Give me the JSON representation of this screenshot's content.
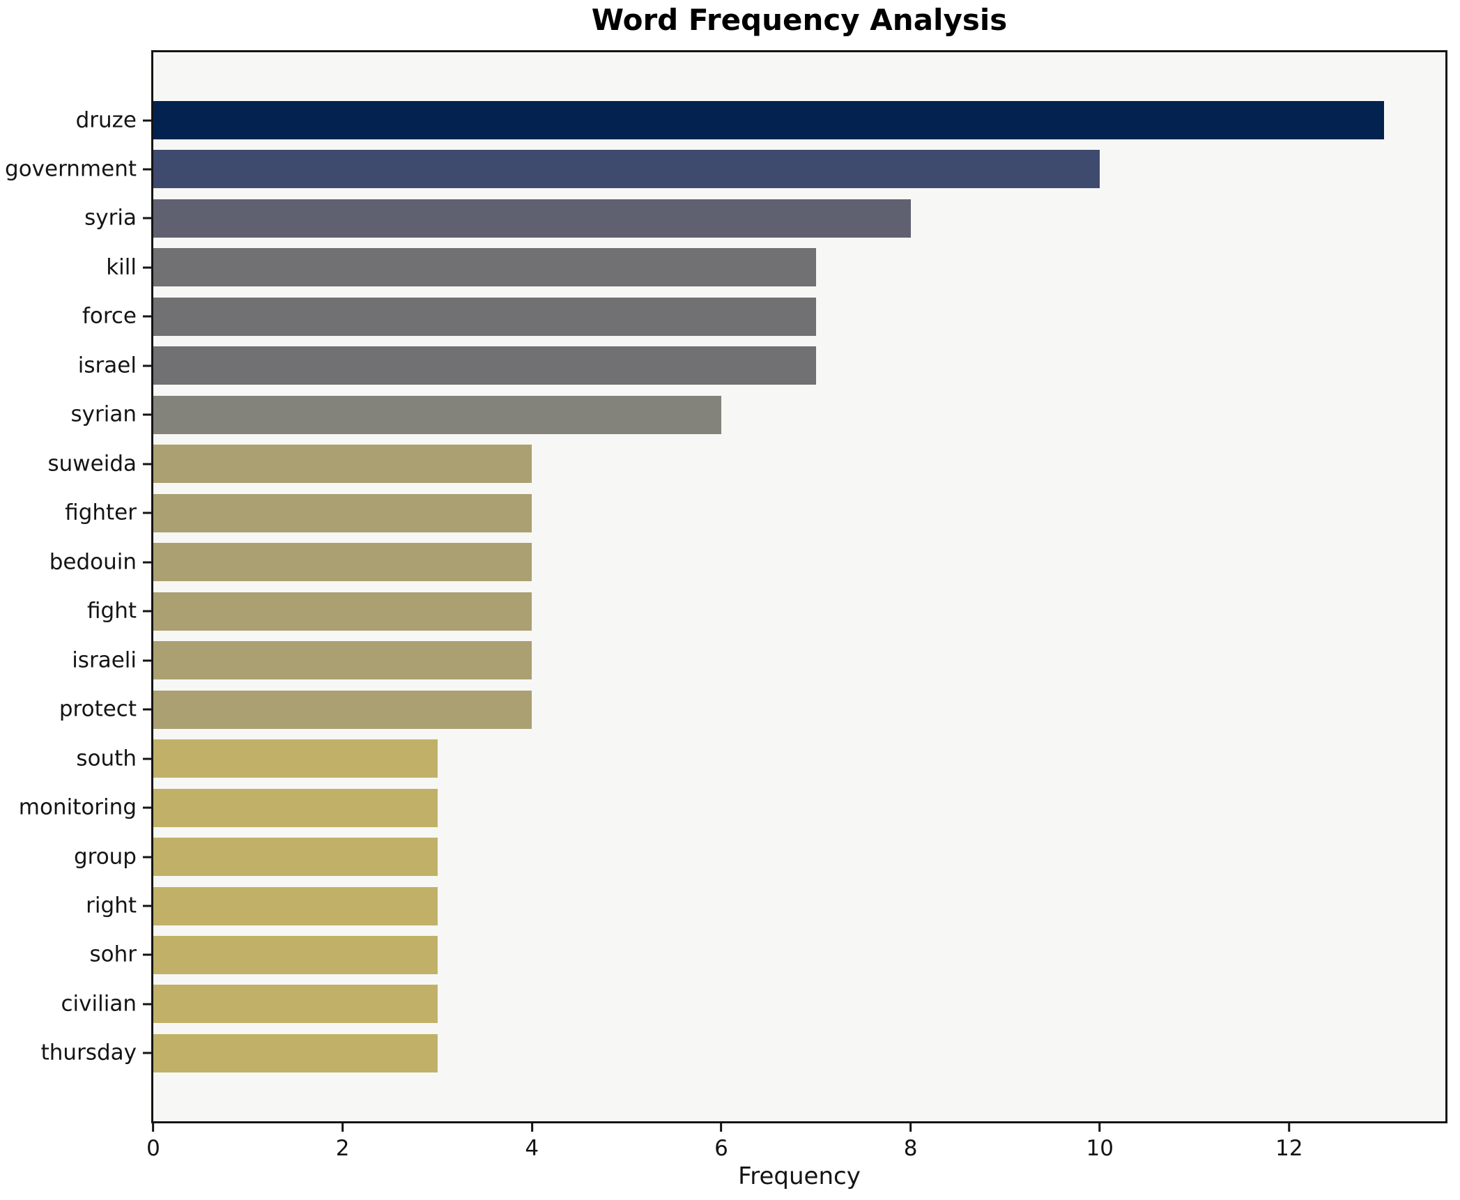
{
  "chart_data": {
    "type": "bar",
    "orientation": "horizontal",
    "title": "Word Frequency Analysis",
    "xlabel": "Frequency",
    "ylabel": "",
    "categories": [
      "druze",
      "government",
      "syria",
      "kill",
      "force",
      "israel",
      "syrian",
      "suweida",
      "fighter",
      "bedouin",
      "fight",
      "israeli",
      "protect",
      "south",
      "monitoring",
      "group",
      "right",
      "sohr",
      "civilian",
      "thursday"
    ],
    "values": [
      13,
      10,
      8,
      7,
      7,
      7,
      6,
      4,
      4,
      4,
      4,
      4,
      4,
      3,
      3,
      3,
      3,
      3,
      3,
      3
    ],
    "bar_colors": [
      "#04224f",
      "#3e4a6e",
      "#5f6170",
      "#717174",
      "#717174",
      "#717174",
      "#84837b",
      "#aba072",
      "#aba072",
      "#aba072",
      "#aba072",
      "#aba072",
      "#aba072",
      "#c1b168",
      "#c1b168",
      "#c1b168",
      "#c1b168",
      "#c1b168",
      "#c1b168",
      "#c1b168"
    ],
    "xlim": [
      0,
      13.65
    ],
    "xticks": [
      0,
      2,
      4,
      6,
      8,
      10,
      12
    ],
    "grid": false,
    "legend": null,
    "plot_bg": "#f7f7f5",
    "fig_bg": "#ffffff",
    "spine_color": "#141414"
  }
}
